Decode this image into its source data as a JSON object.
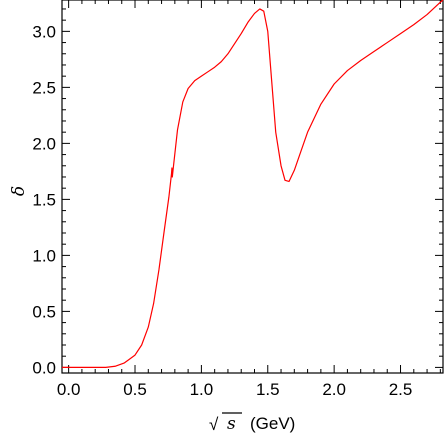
{
  "chart_data": {
    "type": "line",
    "title": "",
    "xlabel": {
      "sqrt_symbol": "√",
      "variable": "s",
      "unit": "(GeV)"
    },
    "ylabel": "δ",
    "xlim": [
      -0.05,
      2.82
    ],
    "ylim": [
      -0.05,
      3.28
    ],
    "xticks": [
      {
        "value": 0.0,
        "label": "0.0"
      },
      {
        "value": 0.5,
        "label": "0.5"
      },
      {
        "value": 1.0,
        "label": "1.0"
      },
      {
        "value": 1.5,
        "label": "1.5"
      },
      {
        "value": 2.0,
        "label": "2.0"
      },
      {
        "value": 2.5,
        "label": "2.5"
      }
    ],
    "yticks": [
      {
        "value": 0.0,
        "label": "0.0"
      },
      {
        "value": 0.5,
        "label": "0.5"
      },
      {
        "value": 1.0,
        "label": "1.0"
      },
      {
        "value": 1.5,
        "label": "1.5"
      },
      {
        "value": 2.0,
        "label": "2.0"
      },
      {
        "value": 2.5,
        "label": "2.5"
      },
      {
        "value": 3.0,
        "label": "3.0"
      }
    ],
    "grid": false,
    "series": [
      {
        "color": "#ff0000",
        "points": [
          [
            -0.05,
            0.0
          ],
          [
            0.1,
            0.0
          ],
          [
            0.2,
            0.0
          ],
          [
            0.28,
            0.0
          ],
          [
            0.35,
            0.01
          ],
          [
            0.42,
            0.04
          ],
          [
            0.5,
            0.11
          ],
          [
            0.55,
            0.2
          ],
          [
            0.6,
            0.36
          ],
          [
            0.64,
            0.57
          ],
          [
            0.68,
            0.87
          ],
          [
            0.72,
            1.22
          ],
          [
            0.755,
            1.52
          ],
          [
            0.775,
            1.73
          ],
          [
            0.778,
            1.78
          ],
          [
            0.781,
            1.7
          ],
          [
            0.79,
            1.8
          ],
          [
            0.82,
            2.12
          ],
          [
            0.86,
            2.37
          ],
          [
            0.9,
            2.49
          ],
          [
            0.95,
            2.56
          ],
          [
            1.0,
            2.6
          ],
          [
            1.05,
            2.64
          ],
          [
            1.1,
            2.68
          ],
          [
            1.15,
            2.73
          ],
          [
            1.2,
            2.8
          ],
          [
            1.25,
            2.89
          ],
          [
            1.3,
            2.98
          ],
          [
            1.35,
            3.08
          ],
          [
            1.4,
            3.16
          ],
          [
            1.44,
            3.2
          ],
          [
            1.47,
            3.18
          ],
          [
            1.5,
            3.0
          ],
          [
            1.53,
            2.55
          ],
          [
            1.56,
            2.1
          ],
          [
            1.6,
            1.8
          ],
          [
            1.63,
            1.67
          ],
          [
            1.66,
            1.66
          ],
          [
            1.7,
            1.76
          ],
          [
            1.75,
            1.93
          ],
          [
            1.8,
            2.1
          ],
          [
            1.9,
            2.35
          ],
          [
            2.0,
            2.53
          ],
          [
            2.1,
            2.65
          ],
          [
            2.2,
            2.74
          ],
          [
            2.3,
            2.82
          ],
          [
            2.4,
            2.9
          ],
          [
            2.5,
            2.98
          ],
          [
            2.6,
            3.06
          ],
          [
            2.7,
            3.15
          ],
          [
            2.8,
            3.26
          ],
          [
            2.82,
            3.28
          ]
        ]
      }
    ]
  }
}
